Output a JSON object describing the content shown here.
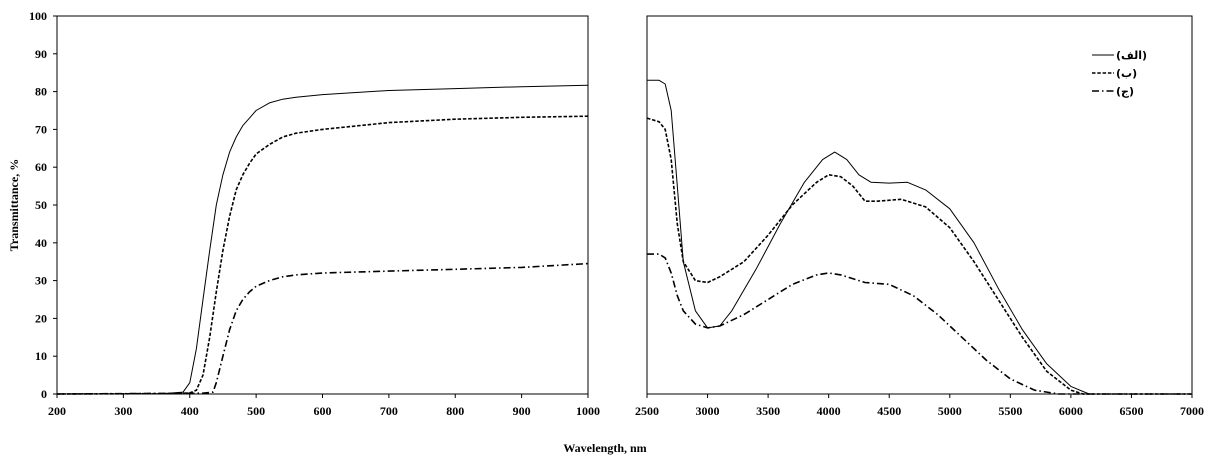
{
  "figure": {
    "ylabel": "Transmittance, %",
    "xlabel": "Wavelength, nm"
  },
  "chart_data": [
    {
      "type": "line",
      "xlim": [
        200,
        1000
      ],
      "ylim": [
        0,
        100
      ],
      "x_ticks": [
        "200",
        "300",
        "400",
        "500",
        "600",
        "700",
        "800",
        "900",
        "1000"
      ],
      "y_ticks": [
        "0",
        "10",
        "20",
        "30",
        "40",
        "50",
        "60",
        "70",
        "80",
        "90",
        "100"
      ],
      "grid": false,
      "series": [
        {
          "style": "solid",
          "color": "#000000",
          "points": [
            [
              200,
              0
            ],
            [
              360,
              0.1
            ],
            [
              390,
              0.5
            ],
            [
              400,
              3
            ],
            [
              410,
              12
            ],
            [
              420,
              25
            ],
            [
              430,
              38
            ],
            [
              440,
              50
            ],
            [
              450,
              58
            ],
            [
              460,
              64
            ],
            [
              470,
              68
            ],
            [
              480,
              71
            ],
            [
              490,
              73
            ],
            [
              500,
              75
            ],
            [
              520,
              77
            ],
            [
              540,
              78
            ],
            [
              560,
              78.5
            ],
            [
              600,
              79.2
            ],
            [
              700,
              80.3
            ],
            [
              800,
              80.8
            ],
            [
              900,
              81.3
            ],
            [
              1000,
              81.7
            ]
          ]
        },
        {
          "style": "dashed",
          "color": "#000000",
          "points": [
            [
              200,
              0
            ],
            [
              380,
              0.1
            ],
            [
              400,
              0.3
            ],
            [
              410,
              1
            ],
            [
              420,
              5
            ],
            [
              430,
              15
            ],
            [
              440,
              27
            ],
            [
              450,
              38
            ],
            [
              460,
              47
            ],
            [
              470,
              54
            ],
            [
              480,
              58
            ],
            [
              490,
              61
            ],
            [
              500,
              63.5
            ],
            [
              520,
              66
            ],
            [
              540,
              68
            ],
            [
              560,
              69
            ],
            [
              600,
              70
            ],
            [
              700,
              71.8
            ],
            [
              800,
              72.7
            ],
            [
              900,
              73.2
            ],
            [
              1000,
              73.5
            ]
          ]
        },
        {
          "style": "dashdot",
          "color": "#000000",
          "points": [
            [
              200,
              0
            ],
            [
              420,
              0.2
            ],
            [
              435,
              0.5
            ],
            [
              440,
              3
            ],
            [
              450,
              10
            ],
            [
              460,
              17
            ],
            [
              470,
              22
            ],
            [
              480,
              25
            ],
            [
              490,
              27
            ],
            [
              500,
              28.5
            ],
            [
              520,
              30
            ],
            [
              540,
              31
            ],
            [
              560,
              31.5
            ],
            [
              600,
              32
            ],
            [
              700,
              32.5
            ],
            [
              800,
              33
            ],
            [
              900,
              33.5
            ],
            [
              1000,
              34.5
            ]
          ]
        }
      ]
    },
    {
      "type": "line",
      "xlim": [
        2500,
        7000
      ],
      "ylim": [
        0,
        100
      ],
      "x_ticks": [
        "2500",
        "3000",
        "3500",
        "4000",
        "4500",
        "5000",
        "5500",
        "6000",
        "6500",
        "7000"
      ],
      "grid": false,
      "legend": {
        "position": "top-right",
        "entries": [
          "(الف)",
          "(ب)",
          "(ج)"
        ]
      },
      "series": [
        {
          "name": "(الف)",
          "style": "solid",
          "color": "#000000",
          "points": [
            [
              2500,
              83
            ],
            [
              2600,
              83
            ],
            [
              2650,
              82
            ],
            [
              2700,
              75
            ],
            [
              2750,
              55
            ],
            [
              2800,
              35
            ],
            [
              2900,
              22
            ],
            [
              3000,
              17.5
            ],
            [
              3100,
              18
            ],
            [
              3200,
              22
            ],
            [
              3400,
              33
            ],
            [
              3600,
              45
            ],
            [
              3800,
              56
            ],
            [
              3950,
              62
            ],
            [
              4050,
              64
            ],
            [
              4150,
              62
            ],
            [
              4250,
              58
            ],
            [
              4350,
              56
            ],
            [
              4500,
              55.8
            ],
            [
              4650,
              56
            ],
            [
              4800,
              54
            ],
            [
              5000,
              49
            ],
            [
              5200,
              40
            ],
            [
              5400,
              28
            ],
            [
              5600,
              17
            ],
            [
              5800,
              8
            ],
            [
              6000,
              2
            ],
            [
              6150,
              0
            ],
            [
              7000,
              0
            ]
          ]
        },
        {
          "name": "(ب)",
          "style": "dashed",
          "color": "#000000",
          "points": [
            [
              2500,
              73
            ],
            [
              2600,
              72
            ],
            [
              2650,
              70
            ],
            [
              2700,
              62
            ],
            [
              2750,
              45
            ],
            [
              2800,
              35
            ],
            [
              2900,
              30
            ],
            [
              3000,
              29.5
            ],
            [
              3100,
              31
            ],
            [
              3300,
              35
            ],
            [
              3500,
              42
            ],
            [
              3700,
              50
            ],
            [
              3900,
              56
            ],
            [
              4000,
              58
            ],
            [
              4100,
              57.5
            ],
            [
              4200,
              55
            ],
            [
              4300,
              51
            ],
            [
              4400,
              51
            ],
            [
              4600,
              51.5
            ],
            [
              4800,
              49.5
            ],
            [
              5000,
              44
            ],
            [
              5200,
              35
            ],
            [
              5400,
              25
            ],
            [
              5600,
              15
            ],
            [
              5800,
              6
            ],
            [
              6000,
              1
            ],
            [
              6100,
              0
            ],
            [
              7000,
              0
            ]
          ]
        },
        {
          "name": "(ج)",
          "style": "dashdot",
          "color": "#000000",
          "points": [
            [
              2500,
              37
            ],
            [
              2600,
              37
            ],
            [
              2650,
              36
            ],
            [
              2700,
              32
            ],
            [
              2750,
              26
            ],
            [
              2800,
              22
            ],
            [
              2900,
              18.5
            ],
            [
              3000,
              17.5
            ],
            [
              3100,
              18
            ],
            [
              3300,
              21
            ],
            [
              3500,
              25
            ],
            [
              3700,
              29
            ],
            [
              3900,
              31.5
            ],
            [
              4000,
              32
            ],
            [
              4100,
              31.5
            ],
            [
              4300,
              29.5
            ],
            [
              4500,
              29
            ],
            [
              4700,
              26
            ],
            [
              4900,
              21
            ],
            [
              5100,
              15
            ],
            [
              5300,
              9
            ],
            [
              5500,
              4
            ],
            [
              5700,
              1
            ],
            [
              5900,
              0
            ],
            [
              7000,
              0
            ]
          ]
        }
      ]
    }
  ]
}
